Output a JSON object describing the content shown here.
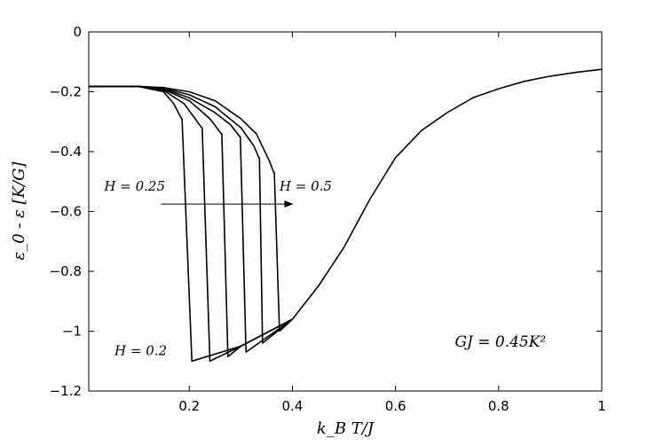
{
  "chart_data": {
    "type": "line",
    "title": "",
    "xlabel": "k_B T/J",
    "ylabel": "ε_0 - ε [K/G]",
    "xlim": [
      0.005,
      1.0
    ],
    "ylim": [
      -1.2,
      0
    ],
    "xticks": [
      "0.2",
      "0.4",
      "0.6",
      "0.8",
      "1"
    ],
    "xtick_values": [
      0.2,
      0.4,
      0.6,
      0.8,
      1.0
    ],
    "yticks": [
      "0",
      "−0.2",
      "−0.4",
      "−0.6",
      "−0.8",
      "−1",
      "−1.2"
    ],
    "ytick_values": [
      0,
      -0.2,
      -0.4,
      -0.6,
      -0.8,
      -1.0,
      -1.2
    ],
    "grid": false,
    "line_color": "#000000",
    "series": [
      {
        "x": [
          0.005,
          0.1,
          0.15,
          0.17,
          0.185,
          0.186,
          0.205,
          0.3,
          0.4,
          0.45,
          0.5,
          0.55,
          0.6,
          0.65,
          0.7,
          0.75,
          0.8,
          0.85,
          0.9,
          0.95,
          1.0
        ],
        "y": [
          -0.182,
          -0.182,
          -0.2,
          -0.24,
          -0.29,
          -0.29,
          -1.1,
          -1.05,
          -0.96,
          -0.85,
          -0.72,
          -0.56,
          -0.42,
          -0.33,
          -0.27,
          -0.22,
          -0.19,
          -0.165,
          -0.148,
          -0.135,
          -0.125
        ]
      },
      {
        "x": [
          0.005,
          0.1,
          0.15,
          0.19,
          0.224,
          0.225,
          0.24,
          0.3,
          0.4
        ],
        "y": [
          -0.182,
          -0.182,
          -0.195,
          -0.24,
          -0.32,
          -0.32,
          -1.1,
          -1.05,
          -0.96
        ]
      },
      {
        "x": [
          0.005,
          0.1,
          0.15,
          0.2,
          0.24,
          0.262,
          0.263,
          0.275,
          0.3,
          0.4
        ],
        "y": [
          -0.182,
          -0.182,
          -0.192,
          -0.23,
          -0.29,
          -0.34,
          -0.34,
          -1.085,
          -1.05,
          -0.96
        ]
      },
      {
        "x": [
          0.005,
          0.1,
          0.15,
          0.2,
          0.25,
          0.28,
          0.298,
          0.299,
          0.31,
          0.4
        ],
        "y": [
          -0.182,
          -0.182,
          -0.19,
          -0.22,
          -0.27,
          -0.31,
          -0.35,
          -0.35,
          -1.07,
          -0.96
        ]
      },
      {
        "x": [
          0.005,
          0.1,
          0.15,
          0.2,
          0.25,
          0.3,
          0.325,
          0.335,
          0.336,
          0.342,
          0.4
        ],
        "y": [
          -0.182,
          -0.182,
          -0.188,
          -0.21,
          -0.25,
          -0.32,
          -0.38,
          -0.42,
          -0.42,
          -1.04,
          -0.96
        ]
      },
      {
        "x": [
          0.005,
          0.1,
          0.15,
          0.2,
          0.25,
          0.3,
          0.33,
          0.355,
          0.364,
          0.365,
          0.375,
          0.4
        ],
        "y": [
          -0.182,
          -0.182,
          -0.186,
          -0.2,
          -0.23,
          -0.29,
          -0.34,
          -0.43,
          -0.47,
          -0.47,
          -1.0,
          -0.96
        ]
      }
    ],
    "annotations": [
      {
        "text": "H = 0.25",
        "x": 0.035,
        "y": -0.53
      },
      {
        "text": "H = 0.5",
        "x": 0.375,
        "y": -0.53
      },
      {
        "text": "H = 0.2",
        "x": 0.055,
        "y": -1.08
      },
      {
        "text": "GJ = 0.45K²",
        "x": 0.715,
        "y": -1.052
      }
    ],
    "arrow": {
      "from": [
        0.145,
        -0.575
      ],
      "to": [
        0.4,
        -0.575
      ]
    }
  }
}
